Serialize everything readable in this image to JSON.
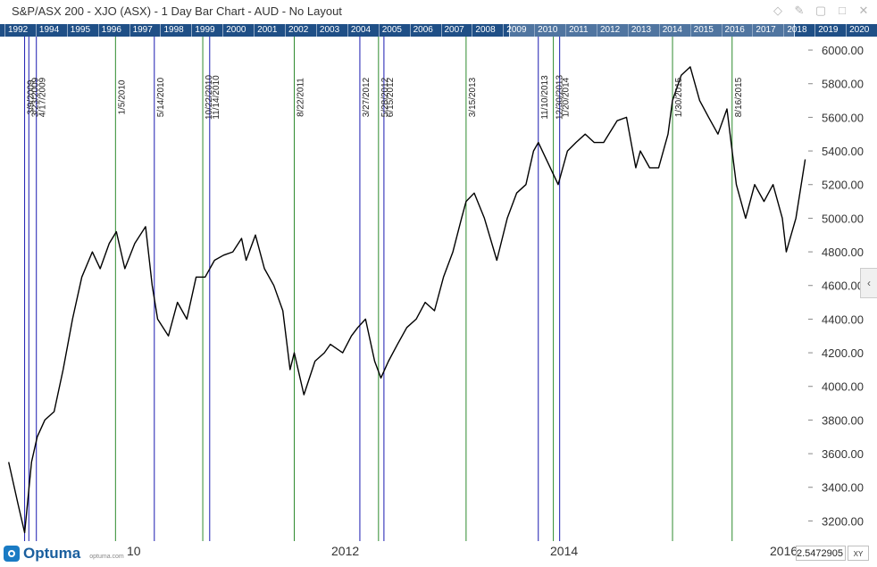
{
  "window": {
    "title": "S&P/ASX 200 - XJO (ASX) - 1 Day Bar Chart - AUD - No Layout",
    "icons": [
      "diamond-icon",
      "pin-icon",
      "copy-icon",
      "maximize-icon",
      "close-icon"
    ]
  },
  "overview": {
    "years": [
      "1992",
      "1994",
      "1995",
      "1996",
      "1997",
      "1998",
      "1999",
      "2000",
      "2001",
      "2002",
      "2003",
      "2004",
      "2005",
      "2006",
      "2007",
      "2008",
      "2009",
      "2010",
      "2011",
      "2012",
      "2013",
      "2014",
      "2015",
      "2016",
      "2017",
      "2018",
      "2019",
      "2020"
    ]
  },
  "bottom": {
    "logo": "Optuma",
    "logo_small": "optuma.com",
    "date_labels": [
      "10",
      "2012",
      "2014",
      "2016"
    ],
    "cursor_value": "2.5472905",
    "xy_label": "XY"
  },
  "colors": {
    "price_line": "#000000",
    "green_marker": "#2e8b2e",
    "blue_marker": "#1a1ab0",
    "overview_bar": "#1f4f86",
    "price_label": "#333333"
  },
  "chart_data": {
    "type": "line",
    "instrument": "S&P/ASX 200 - XJO (ASX)",
    "ylim": [
      3080,
      6080
    ],
    "yticks": [
      "3200.00",
      "3400.00",
      "3600.00",
      "3800.00",
      "4000.00",
      "4200.00",
      "4400.00",
      "4600.00",
      "4800.00",
      "5000.00",
      "5200.00",
      "5400.00",
      "5600.00",
      "5800.00",
      "6000.00"
    ],
    "x": [
      "2009-01-15",
      "2009-02-15",
      "2009-03-09",
      "2009-04-01",
      "2009-04-20",
      "2009-05-15",
      "2009-06-15",
      "2009-07-15",
      "2009-08-15",
      "2009-09-15",
      "2009-10-20",
      "2009-11-15",
      "2009-12-15",
      "2010-01-08",
      "2010-02-05",
      "2010-03-10",
      "2010-04-15",
      "2010-05-07",
      "2010-05-25",
      "2010-06-30",
      "2010-07-30",
      "2010-08-30",
      "2010-09-30",
      "2010-10-30",
      "2010-11-30",
      "2010-12-30",
      "2011-01-30",
      "2011-02-28",
      "2011-03-15",
      "2011-04-15",
      "2011-05-15",
      "2011-06-15",
      "2011-07-15",
      "2011-08-08",
      "2011-08-22",
      "2011-09-23",
      "2011-10-30",
      "2011-11-30",
      "2011-12-20",
      "2012-01-30",
      "2012-02-28",
      "2012-03-20",
      "2012-04-15",
      "2012-05-15",
      "2012-06-05",
      "2012-06-30",
      "2012-07-30",
      "2012-08-30",
      "2012-09-30",
      "2012-10-30",
      "2012-11-30",
      "2012-12-30",
      "2013-01-30",
      "2013-02-28",
      "2013-03-15",
      "2013-04-11",
      "2013-05-15",
      "2013-06-25",
      "2013-07-30",
      "2013-08-30",
      "2013-09-30",
      "2013-10-25",
      "2013-11-10",
      "2013-12-20",
      "2014-01-15",
      "2014-02-15",
      "2014-03-15",
      "2014-04-15",
      "2014-05-15",
      "2014-06-15",
      "2014-07-30",
      "2014-08-30",
      "2014-09-30",
      "2014-10-15",
      "2014-11-15",
      "2014-12-15",
      "2015-01-15",
      "2015-01-30",
      "2015-02-28",
      "2015-03-30",
      "2015-04-30",
      "2015-05-30",
      "2015-06-30",
      "2015-07-30",
      "2015-08-16",
      "2015-08-30",
      "2015-09-30",
      "2015-10-30",
      "2015-11-30",
      "2015-12-30",
      "2016-01-30",
      "2016-02-12",
      "2016-03-15",
      "2016-04-15"
    ],
    "y": [
      3550,
      3300,
      3130,
      3550,
      3700,
      3800,
      3850,
      4100,
      4400,
      4650,
      4800,
      4700,
      4850,
      4920,
      4700,
      4850,
      4950,
      4600,
      4400,
      4300,
      4500,
      4400,
      4650,
      4650,
      4750,
      4780,
      4800,
      4880,
      4750,
      4900,
      4700,
      4600,
      4450,
      4100,
      4200,
      3950,
      4150,
      4200,
      4250,
      4200,
      4300,
      4350,
      4400,
      4150,
      4050,
      4150,
      4250,
      4350,
      4400,
      4500,
      4450,
      4650,
      4800,
      5000,
      5100,
      5150,
      5000,
      4750,
      5000,
      5150,
      5200,
      5400,
      5450,
      5300,
      5200,
      5400,
      5450,
      5500,
      5450,
      5450,
      5580,
      5600,
      5300,
      5400,
      5300,
      5300,
      5500,
      5700,
      5850,
      5900,
      5700,
      5600,
      5500,
      5650,
      5400,
      5200,
      5000,
      5200,
      5100,
      5200,
      5000,
      4800,
      5000,
      5350
    ]
  },
  "markers": [
    {
      "label": "3/9/2009",
      "date": "2009-03-09",
      "color": "blue"
    },
    {
      "label": "3/23/2009",
      "date": "2009-03-23",
      "color": "blue"
    },
    {
      "label": "4/17/2009",
      "date": "2009-04-17",
      "color": "blue"
    },
    {
      "label": "1/5/2010",
      "date": "2010-01-05",
      "color": "green"
    },
    {
      "label": "5/14/2010",
      "date": "2010-05-14",
      "color": "blue"
    },
    {
      "label": "10/22/2010",
      "date": "2010-10-22",
      "color": "green"
    },
    {
      "label": "11/14/2010",
      "date": "2010-11-14",
      "color": "blue"
    },
    {
      "label": "8/22/2011",
      "date": "2011-08-22",
      "color": "green"
    },
    {
      "label": "3/27/2012",
      "date": "2012-03-27",
      "color": "blue"
    },
    {
      "label": "5/28/2012",
      "date": "2012-05-28",
      "color": "green"
    },
    {
      "label": "6/15/2012",
      "date": "2012-06-15",
      "color": "blue"
    },
    {
      "label": "3/15/2013",
      "date": "2013-03-15",
      "color": "green"
    },
    {
      "label": "11/10/2013",
      "date": "2013-11-10",
      "color": "blue"
    },
    {
      "label": "12/30/2013",
      "date": "2013-12-30",
      "color": "green"
    },
    {
      "label": "1/20/2014",
      "date": "2014-01-20",
      "color": "blue"
    },
    {
      "label": "1/30/2015",
      "date": "2015-01-30",
      "color": "green"
    },
    {
      "label": "8/16/2015",
      "date": "2015-08-16",
      "color": "green"
    }
  ]
}
